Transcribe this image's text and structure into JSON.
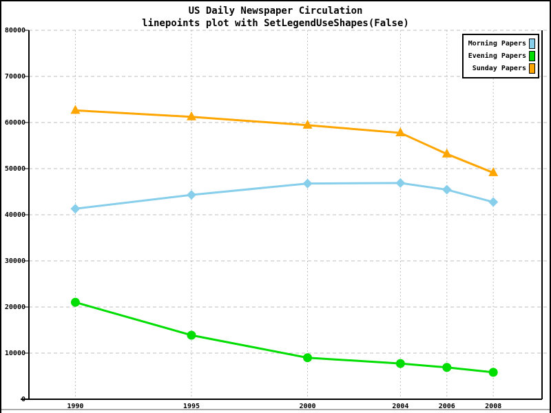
{
  "chart_data": {
    "type": "line",
    "title": "US Daily Newspaper Circulation",
    "subtitle": "linepoints plot with SetLegendUseShapes(False)",
    "x": [
      1990,
      1995,
      2000,
      2004,
      2006,
      2008
    ],
    "x_tick_labels": [
      "1990",
      "1995",
      "2000",
      "2004",
      "2006",
      "2008"
    ],
    "y_ticks": [
      0,
      10000,
      20000,
      30000,
      40000,
      50000,
      60000,
      70000,
      80000
    ],
    "xlim": [
      1988,
      2010.1
    ],
    "ylim": [
      0,
      80000
    ],
    "xlabel": "",
    "ylabel": "",
    "grid": true,
    "gridline_color": "#bdbdbd",
    "legend_position": "top-right",
    "series": [
      {
        "name": "Morning Papers",
        "color": "#87CEEB",
        "marker": "diamond",
        "values": [
          41311,
          44310,
          46772,
          46887,
          45441,
          42757
        ]
      },
      {
        "name": "Evening Papers",
        "color": "#00DD00",
        "marker": "circle",
        "values": [
          21017,
          13883,
          9000,
          7738,
          6900,
          5840
        ]
      },
      {
        "name": "Sunday Papers",
        "color": "#FFA500",
        "marker": "triangle",
        "values": [
          62635,
          61229,
          59421,
          57754,
          53179,
          49115
        ]
      }
    ]
  }
}
